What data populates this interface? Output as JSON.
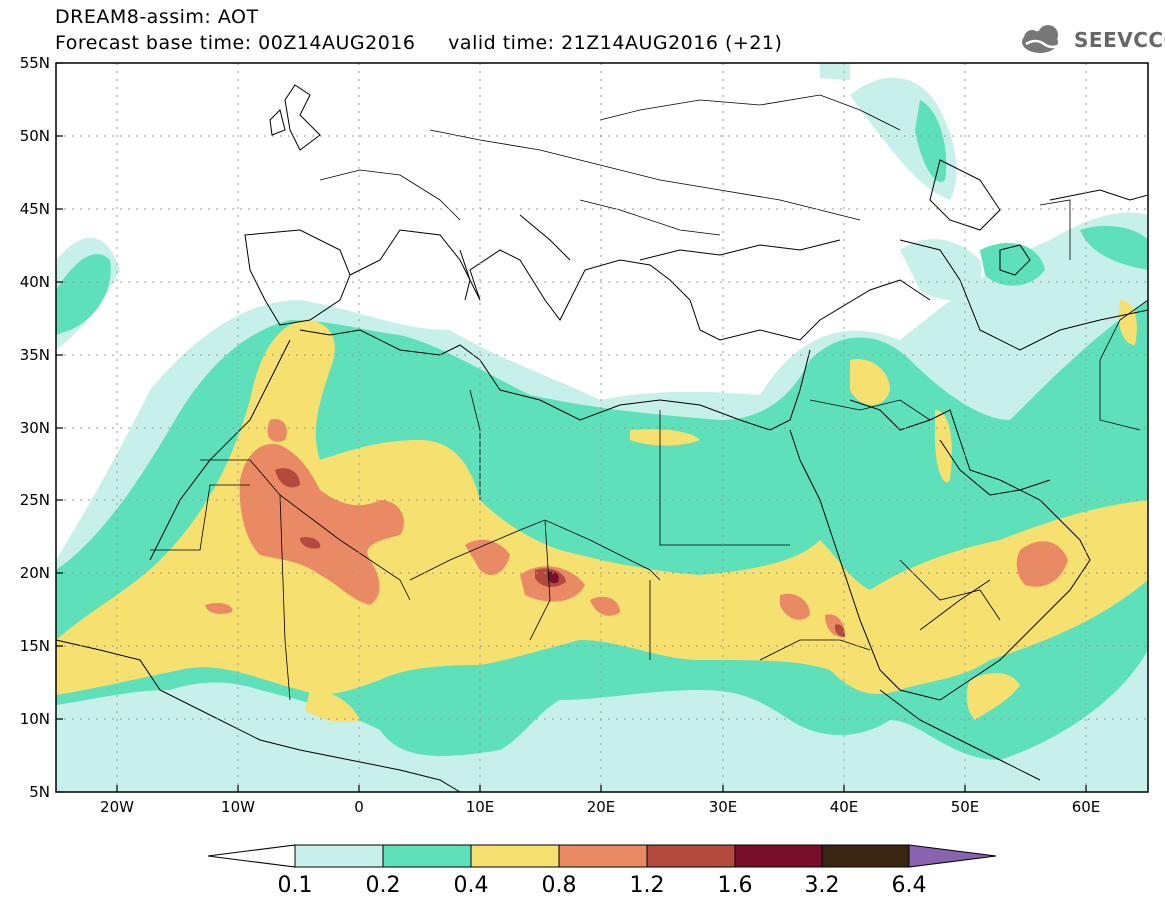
{
  "header": {
    "title_line1": "DREAM8-assim: AOT",
    "title_line2": "Forecast base time: 00Z14AUG2016     valid time: 21Z14AUG2016 (+21)",
    "logo_text": "SEEVCCC"
  },
  "axes": {
    "lat_labels": [
      "55N",
      "50N",
      "45N",
      "40N",
      "35N",
      "30N",
      "25N",
      "20N",
      "15N",
      "10N",
      "5N"
    ],
    "lon_labels": [
      "20W",
      "10W",
      "0",
      "10E",
      "20E",
      "30E",
      "40E",
      "50E",
      "60E"
    ]
  },
  "colorbar": {
    "tick_labels": [
      "0.1",
      "0.2",
      "0.4",
      "0.8",
      "1.2",
      "1.6",
      "3.2",
      "6.4"
    ],
    "colors": [
      "#c8f0ea",
      "#5ee0bb",
      "#f5e070",
      "#e98a65",
      "#b44a3e",
      "#7a0f2a",
      "#3a2412",
      "#8a63b0"
    ]
  },
  "colors": {
    "c01": "#c8f0ea",
    "c02": "#5ee0bb",
    "c04": "#f5e070",
    "c08": "#e98a65",
    "c12": "#b44a3e",
    "c16": "#7a0f2a"
  }
}
